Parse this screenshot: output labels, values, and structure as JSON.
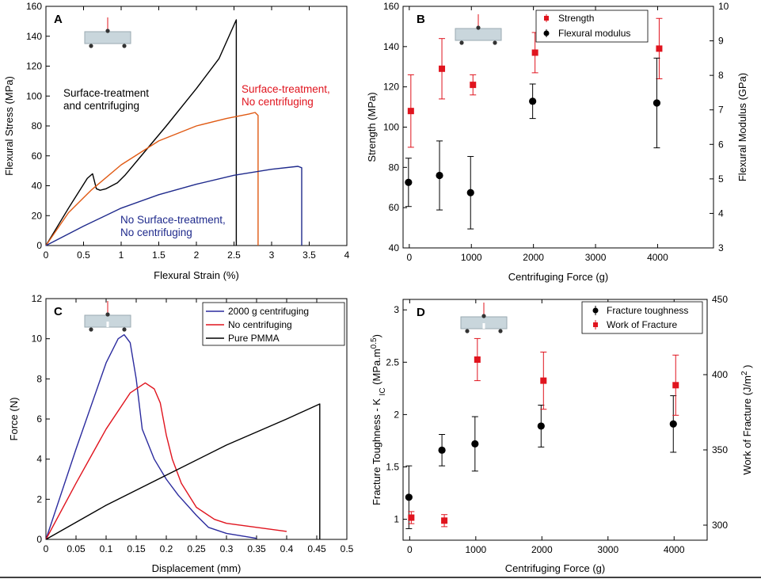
{
  "chart_data": [
    {
      "panel": "A",
      "type": "line",
      "xlabel": "Flexural Strain (%)",
      "ylabel": "Flexural Stress (MPa)",
      "xlim": [
        0,
        4
      ],
      "ylim": [
        0,
        160
      ],
      "xticks": [
        "0",
        "0.5",
        "1",
        "1.5",
        "2",
        "2.5",
        "3",
        "3.5",
        "4"
      ],
      "yticks": [
        "0",
        "20",
        "40",
        "60",
        "80",
        "100",
        "120",
        "140",
        "160"
      ],
      "series": [
        {
          "color": "#000000",
          "x": [
            0,
            0.3,
            0.55,
            0.62,
            0.67,
            0.72,
            0.8,
            0.95,
            1.05,
            1.3,
            1.6,
            2.0,
            2.3,
            2.53,
            2.53
          ],
          "y": [
            0,
            25,
            45,
            48,
            38,
            37,
            38,
            42,
            47,
            62,
            80,
            105,
            125,
            151,
            0
          ]
        },
        {
          "color": "#e05a14",
          "x": [
            0,
            0.3,
            0.6,
            1.0,
            1.5,
            2.0,
            2.4,
            2.7,
            2.78,
            2.82,
            2.82
          ],
          "y": [
            0,
            22,
            37,
            54,
            70,
            80,
            85,
            88,
            89,
            87,
            0
          ]
        },
        {
          "color": "#1f2a8c",
          "x": [
            0,
            0.5,
            1.0,
            1.5,
            2.0,
            2.5,
            3.0,
            3.35,
            3.4,
            3.4
          ],
          "y": [
            0,
            13,
            25,
            34,
            41,
            47,
            51,
            53,
            52,
            0
          ]
        }
      ],
      "annotations": [
        {
          "line1": "Surface-treatment",
          "line2": "and centrifuging",
          "color": "#000000"
        },
        {
          "line1": "Surface-treatment,",
          "line2": "No centrifuging",
          "color": "#e0141e"
        },
        {
          "line1": "No Surface-treatment,",
          "line2": "No centrifuging",
          "color": "#1f2a8c"
        }
      ]
    },
    {
      "panel": "B",
      "type": "scatter",
      "xlabel": "Centrifuging Force (g)",
      "ylabel": "Strength (MPa)",
      "y2label": "Flexural Modulus (GPa)",
      "xlim": [
        -100,
        4900
      ],
      "ylim": [
        40,
        160
      ],
      "y2lim": [
        3,
        10
      ],
      "xticks": [
        "0",
        "1000",
        "2000",
        "3000",
        "4000"
      ],
      "yticks": [
        "40",
        "60",
        "80",
        "100",
        "120",
        "140",
        "160"
      ],
      "y2ticks": [
        "3",
        "4",
        "5",
        "6",
        "7",
        "8",
        "9",
        "10"
      ],
      "series": [
        {
          "name": "Strength",
          "color": "#e0141e",
          "marker": "square",
          "axis": "left",
          "x": [
            0,
            500,
            1000,
            2000,
            4000
          ],
          "y": [
            108,
            129,
            121,
            137,
            139
          ],
          "err": [
            18,
            15,
            5,
            10,
            15
          ]
        },
        {
          "name": "Flexural modulus",
          "color": "#000000",
          "marker": "circle",
          "axis": "right",
          "x": [
            0,
            500,
            1000,
            2000,
            4000
          ],
          "y": [
            4.9,
            5.1,
            4.6,
            7.25,
            7.2
          ],
          "err": [
            0.7,
            1.0,
            1.05,
            0.5,
            1.3
          ]
        }
      ],
      "legend": "top-right"
    },
    {
      "panel": "C",
      "type": "line",
      "xlabel": "Displacement (mm)",
      "ylabel": "Force (N)",
      "xlim": [
        0,
        0.5
      ],
      "ylim": [
        0,
        12
      ],
      "xticks": [
        "0",
        "0.05",
        "0.1",
        "0.15",
        "0.2",
        "0.25",
        "0.3",
        "0.35",
        "0.4",
        "0.45",
        "0.5"
      ],
      "yticks": [
        "0",
        "2",
        "4",
        "6",
        "8",
        "10",
        "12"
      ],
      "series": [
        {
          "name": "2000 g centrifuging",
          "color": "#2b2b9e",
          "x": [
            0,
            0.05,
            0.1,
            0.12,
            0.13,
            0.14,
            0.15,
            0.16,
            0.18,
            0.2,
            0.22,
            0.25,
            0.27,
            0.3,
            0.33,
            0.35
          ],
          "y": [
            0,
            4.5,
            8.8,
            10.0,
            10.2,
            9.8,
            8.0,
            5.5,
            4.0,
            3.0,
            2.2,
            1.2,
            0.6,
            0.3,
            0.15,
            0.05
          ]
        },
        {
          "name": "No centrifuging",
          "color": "#e0141e",
          "x": [
            0,
            0.05,
            0.1,
            0.14,
            0.165,
            0.18,
            0.19,
            0.2,
            0.21,
            0.225,
            0.25,
            0.28,
            0.3,
            0.35,
            0.4
          ],
          "y": [
            0,
            2.8,
            5.5,
            7.3,
            7.8,
            7.5,
            6.8,
            5.2,
            4.0,
            2.8,
            1.6,
            1.0,
            0.8,
            0.6,
            0.4
          ]
        },
        {
          "name": "Pure PMMA",
          "color": "#000000",
          "x": [
            0,
            0.1,
            0.2,
            0.3,
            0.4,
            0.455,
            0.455
          ],
          "y": [
            0,
            1.7,
            3.2,
            4.7,
            6.0,
            6.75,
            0
          ]
        }
      ],
      "legend": "top-right"
    },
    {
      "panel": "D",
      "type": "scatter",
      "xlabel": "Centrifuging Force (g)",
      "ylabel": "Fracture Toughness - K_IC (MPa.m^0.5)",
      "ylabel_main": "Fracture Toughness - K",
      "ylabel_sub": "IC",
      "ylabel_unit": "(MPa.m",
      "ylabel_sup": "0.5",
      "ylabel_close": ")",
      "y2label": "Work of Fracture (J/m^2)",
      "y2label_main": "Work of Fracture (J/m",
      "y2label_sup": "2",
      "y2label_close": ")",
      "xlim": [
        -100,
        4500
      ],
      "ylim": [
        0.8,
        3.1
      ],
      "y2lim": [
        290,
        450
      ],
      "xticks": [
        "0",
        "1000",
        "2000",
        "3000",
        "4000"
      ],
      "yticks": [
        "1",
        "1.5",
        "2",
        "2.5",
        "3"
      ],
      "y2ticks": [
        "300",
        "350",
        "400",
        "450"
      ],
      "series": [
        {
          "name": "Fracture toughness",
          "color": "#000000",
          "marker": "circle",
          "axis": "left",
          "x": [
            0,
            500,
            1000,
            2000,
            4000
          ],
          "y": [
            1.21,
            1.66,
            1.72,
            1.89,
            1.91
          ],
          "err": [
            0.3,
            0.15,
            0.26,
            0.2,
            0.27
          ]
        },
        {
          "name": "Work of Fracture",
          "color": "#e0141e",
          "marker": "square",
          "axis": "right",
          "x": [
            0,
            500,
            1000,
            2000,
            4000
          ],
          "y": [
            305,
            303,
            410,
            396,
            393
          ],
          "err": [
            4,
            4,
            14,
            19,
            20
          ]
        }
      ],
      "legend": "top-right"
    }
  ]
}
